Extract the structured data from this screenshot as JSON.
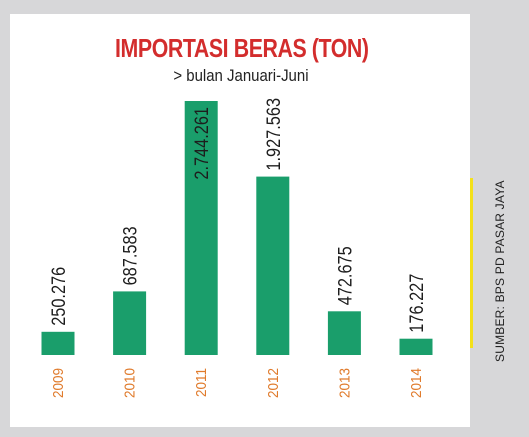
{
  "chart_data": {
    "type": "bar",
    "title": "IMPORTASI BERAS (TON)",
    "subtitle": "> bulan Januari-Juni",
    "categories": [
      "2009",
      "2010",
      "2011",
      "2012",
      "2013",
      "2014"
    ],
    "values": [
      250276,
      687583,
      2744261,
      1927563,
      472675,
      176227
    ],
    "value_labels": [
      "250.276",
      "687.583",
      "2.744.261",
      "1.927.563",
      "472.675",
      "176.227"
    ],
    "ylim": [
      0,
      2744261
    ],
    "grid": false,
    "legend": "none",
    "source": "SUMBER: BPS PD PASAR JAYA"
  },
  "colors": {
    "title": "#d32d2d",
    "bar": "#1a9e6b",
    "category_label": "#e07b2c",
    "value_label": "#1d1d1d",
    "background": "#d7d7d9",
    "panel": "#ffffff",
    "accent_rule": "#f4e11a",
    "source_text": "#222222"
  }
}
